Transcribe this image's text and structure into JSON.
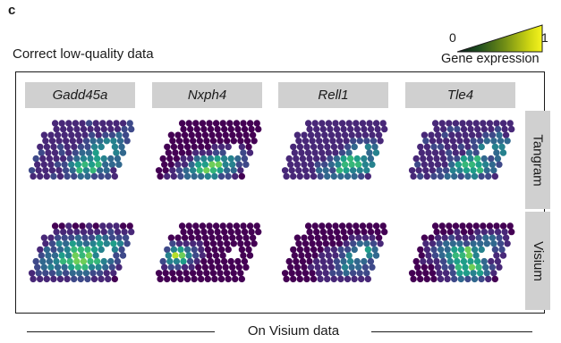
{
  "panel_label": "c",
  "heading": "Correct low-quality data",
  "legend": {
    "min": "0",
    "max": "1",
    "title": "Gene expression",
    "colors": [
      "#0b1a1a",
      "#1e4d1e",
      "#6f8c16",
      "#cfd612",
      "#f6f41f"
    ]
  },
  "genes": [
    "Gadd45a",
    "Nxph4",
    "Rell1",
    "Tle4"
  ],
  "rows": [
    "Tangram",
    "Visium"
  ],
  "footer": "On Visium data",
  "viridis": [
    "#440154",
    "#482878",
    "#3e4989",
    "#31688e",
    "#26828e",
    "#1f9e89",
    "#35b779",
    "#6ece58",
    "#b5de2b",
    "#fde725"
  ],
  "chart_data": {
    "type": "heatmap",
    "series": [
      {
        "row": "Tangram",
        "panels": [
          {
            "gene": "Gadd45a",
            "base": 0.06,
            "noise": 0.12,
            "hotspots": [
              [
                0.75,
                0.45,
                0.55,
                0.09
              ],
              [
                0.6,
                0.78,
                0.9,
                0.06
              ],
              [
                0.72,
                0.62,
                0.75,
                0.07
              ],
              [
                0.9,
                0.3,
                0.35,
                0.1
              ]
            ]
          },
          {
            "gene": "Nxph4",
            "base": 0.01,
            "noise": 0.04,
            "hotspots": [
              [
                0.55,
                0.82,
                1.0,
                0.05
              ],
              [
                0.42,
                0.9,
                0.65,
                0.05
              ],
              [
                0.7,
                0.68,
                0.55,
                0.05
              ]
            ]
          },
          {
            "gene": "Rell1",
            "base": 0.06,
            "noise": 0.1,
            "hotspots": [
              [
                0.68,
                0.78,
                0.95,
                0.06
              ],
              [
                0.82,
                0.55,
                0.6,
                0.08
              ],
              [
                0.5,
                0.88,
                0.45,
                0.06
              ]
            ]
          },
          {
            "gene": "Tle4",
            "base": 0.07,
            "noise": 0.12,
            "hotspots": [
              [
                0.62,
                0.8,
                0.95,
                0.06
              ],
              [
                0.85,
                0.45,
                0.6,
                0.08
              ],
              [
                0.45,
                0.92,
                0.5,
                0.06
              ]
            ]
          }
        ]
      },
      {
        "row": "Visium",
        "panels": [
          {
            "gene": "Gadd45a",
            "base": 0.01,
            "noise": 0.02,
            "hotspots": [
              [
                0.5,
                0.62,
                1.0,
                0.1
              ],
              [
                0.35,
                0.45,
                0.6,
                0.1
              ],
              [
                0.7,
                0.4,
                0.7,
                0.08
              ],
              [
                0.25,
                0.7,
                0.5,
                0.08
              ]
            ]
          },
          {
            "gene": "Nxph4",
            "base": 0.01,
            "noise": 0.02,
            "hotspots": [
              [
                0.15,
                0.55,
                1.0,
                0.035
              ]
            ]
          },
          {
            "gene": "Rell1",
            "base": 0.01,
            "noise": 0.03,
            "hotspots": [
              [
                0.7,
                0.7,
                0.45,
                0.1
              ],
              [
                0.78,
                0.5,
                0.9,
                0.04
              ]
            ]
          },
          {
            "gene": "Tle4",
            "base": 0.01,
            "noise": 0.03,
            "hotspots": [
              [
                0.5,
                0.55,
                1.0,
                0.05
              ],
              [
                0.6,
                0.8,
                0.9,
                0.05
              ],
              [
                0.35,
                0.45,
                0.55,
                0.06
              ],
              [
                0.75,
                0.35,
                0.45,
                0.06
              ]
            ]
          }
        ]
      }
    ]
  }
}
